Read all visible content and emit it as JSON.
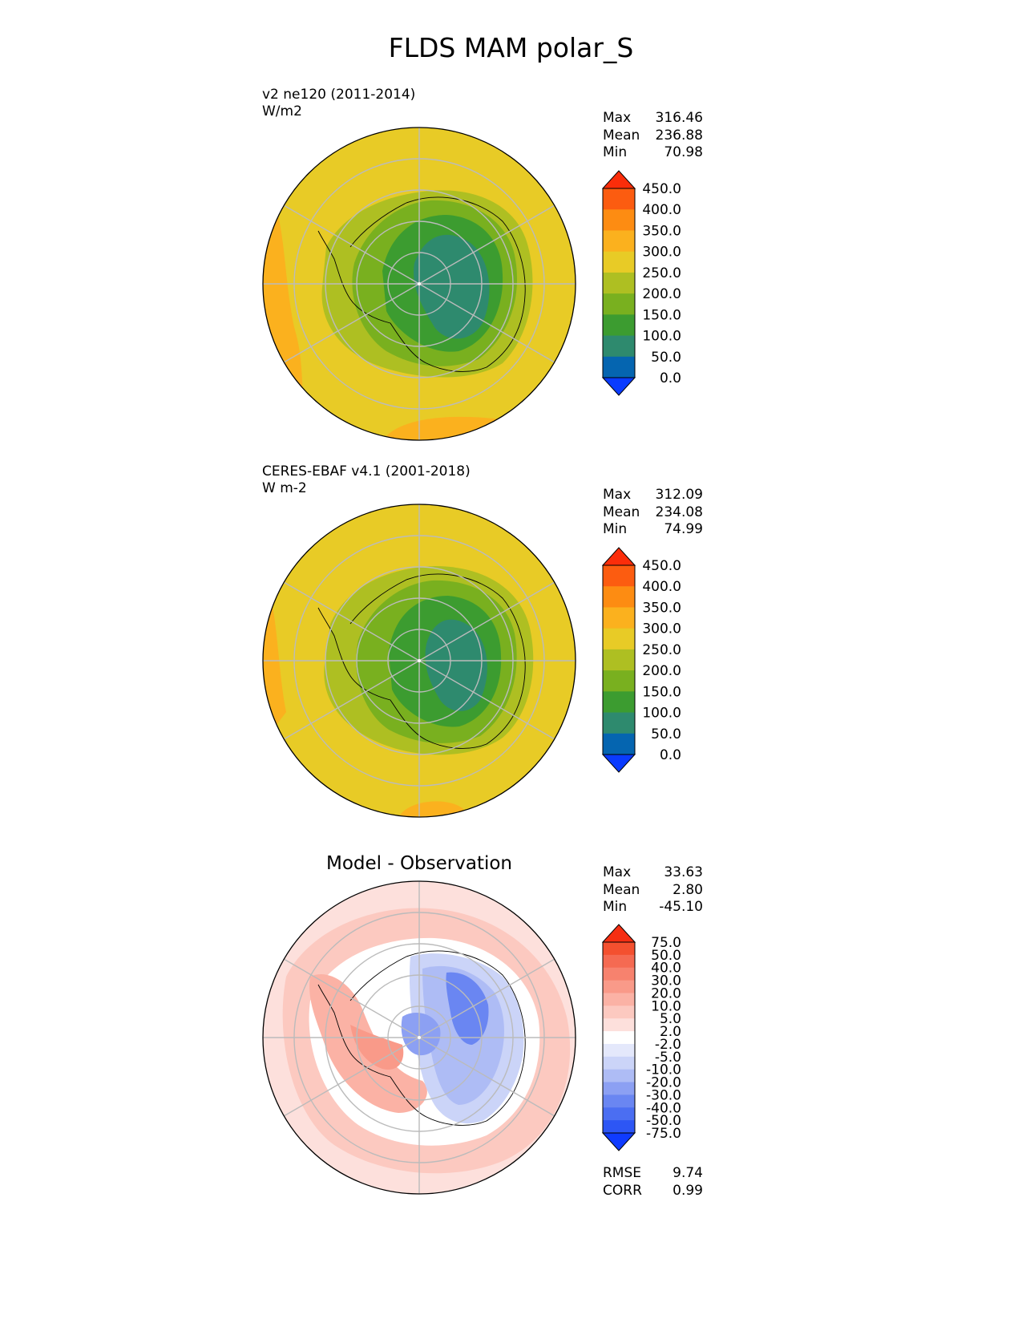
{
  "figure": {
    "title": "FLDS MAM polar_S"
  },
  "chart_data": [
    {
      "type": "heatmap",
      "projection": "south-polar-stereographic",
      "title": "v2 ne120 (2011-2014)",
      "units": "W/m2",
      "stats": [
        {
          "label": "Max",
          "value": "316.46"
        },
        {
          "label": "Mean",
          "value": "236.88"
        },
        {
          "label": "Min",
          "value": "70.98"
        }
      ],
      "colorbar": {
        "levels": [
          "0.0",
          "50.0",
          "100.0",
          "150.0",
          "200.0",
          "250.0",
          "300.0",
          "350.0",
          "400.0",
          "450.0"
        ],
        "colors": [
          "#0a3bff",
          "#0565b0",
          "#2e8a6e",
          "#3c9c30",
          "#79b01f",
          "#aebf22",
          "#e8cb26",
          "#fbb11e",
          "#fd8c12",
          "#fc5c10",
          "#fb2d0a"
        ],
        "extend": "both"
      }
    },
    {
      "type": "heatmap",
      "projection": "south-polar-stereographic",
      "title": "CERES-EBAF v4.1 (2001-2018)",
      "units": "W m-2",
      "stats": [
        {
          "label": "Max",
          "value": "312.09"
        },
        {
          "label": "Mean",
          "value": "234.08"
        },
        {
          "label": "Min",
          "value": "74.99"
        }
      ],
      "colorbar": {
        "levels": [
          "0.0",
          "50.0",
          "100.0",
          "150.0",
          "200.0",
          "250.0",
          "300.0",
          "350.0",
          "400.0",
          "450.0"
        ],
        "colors": [
          "#0a3bff",
          "#0565b0",
          "#2e8a6e",
          "#3c9c30",
          "#79b01f",
          "#aebf22",
          "#e8cb26",
          "#fbb11e",
          "#fd8c12",
          "#fc5c10",
          "#fb2d0a"
        ],
        "extend": "both"
      }
    },
    {
      "type": "heatmap",
      "projection": "south-polar-stereographic",
      "title": "Model - Observation",
      "stats": [
        {
          "label": "Max",
          "value": "33.63"
        },
        {
          "label": "Mean",
          "value": "2.80"
        },
        {
          "label": "Min",
          "value": "-45.10"
        }
      ],
      "metrics": [
        {
          "label": "RMSE",
          "value": "9.74"
        },
        {
          "label": "CORR",
          "value": "0.99"
        }
      ],
      "colorbar": {
        "levels": [
          "-75.0",
          "-50.0",
          "-40.0",
          "-30.0",
          "-20.0",
          "-10.0",
          "-5.0",
          "-2.0",
          "2.0",
          "5.0",
          "10.0",
          "20.0",
          "30.0",
          "40.0",
          "50.0",
          "75.0"
        ],
        "colors": [
          "#0f3bff",
          "#2d56f5",
          "#4b6ef2",
          "#6a86f2",
          "#8ca0f3",
          "#aebcf5",
          "#cbd4f8",
          "#e4e8fb",
          "#ffffff",
          "#fde0dc",
          "#fcc9c0",
          "#fbb2a5",
          "#f99a89",
          "#f7826e",
          "#f56a52",
          "#f4502f",
          "#f52e12"
        ],
        "extend": "both"
      }
    }
  ]
}
